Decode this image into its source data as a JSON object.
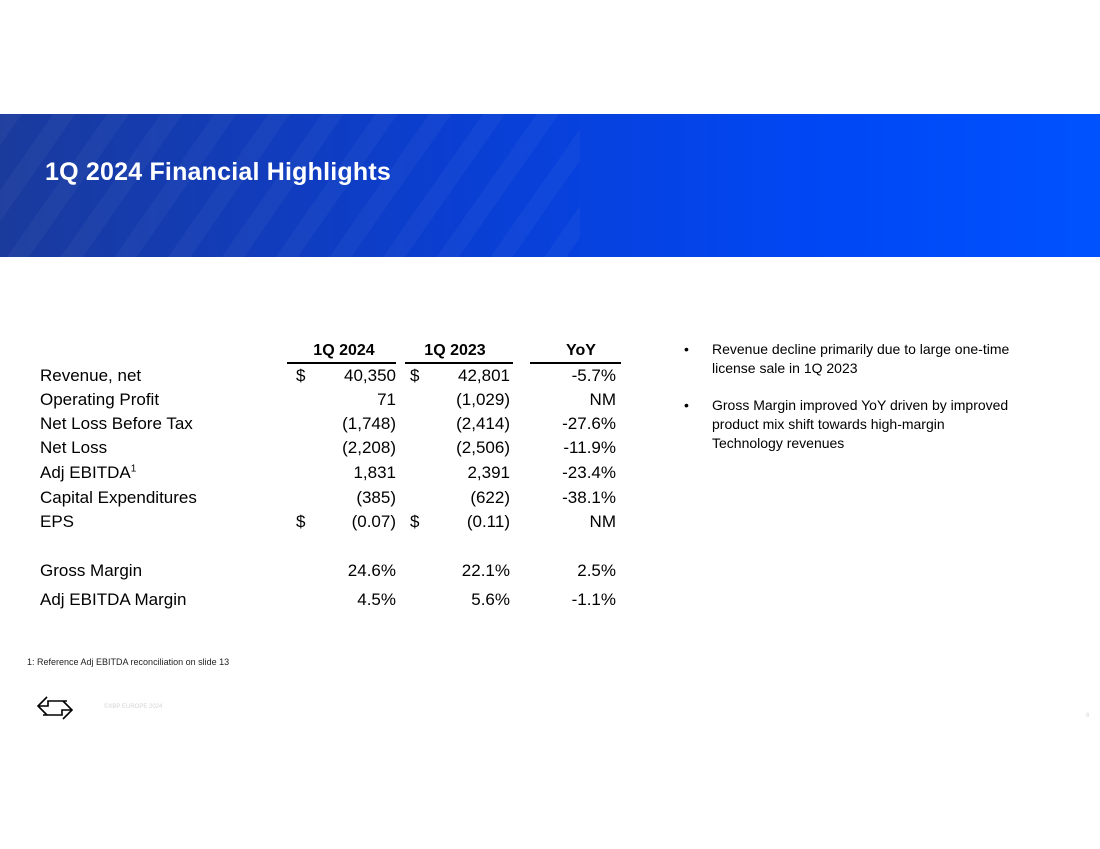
{
  "banner": {
    "title": "1Q 2024 Financial Highlights"
  },
  "table": {
    "columns": [
      "1Q 2024",
      "1Q 2023",
      "YoY"
    ],
    "rows": [
      {
        "label": "Revenue, net",
        "sup": "",
        "dollar_a": "$",
        "a": "40,350",
        "dollar_b": "$",
        "b": "42,801",
        "yoy": "-5.7%"
      },
      {
        "label": "Operating Profit",
        "sup": "",
        "dollar_a": "",
        "a": "71",
        "dollar_b": "",
        "b": "(1,029)",
        "yoy": "NM"
      },
      {
        "label": "Net Loss Before Tax",
        "sup": "",
        "dollar_a": "",
        "a": "(1,748)",
        "dollar_b": "",
        "b": "(2,414)",
        "yoy": "-27.6%"
      },
      {
        "label": "Net Loss",
        "sup": "",
        "dollar_a": "",
        "a": "(2,208)",
        "dollar_b": "",
        "b": "(2,506)",
        "yoy": "-11.9%"
      },
      {
        "label": "Adj EBITDA",
        "sup": "1",
        "dollar_a": "",
        "a": "1,831",
        "dollar_b": "",
        "b": "2,391",
        "yoy": "-23.4%"
      },
      {
        "label": "Capital Expenditures",
        "sup": "",
        "dollar_a": "",
        "a": "(385)",
        "dollar_b": "",
        "b": "(622)",
        "yoy": "-38.1%"
      },
      {
        "label": "EPS",
        "sup": "",
        "dollar_a": "$",
        "a": "(0.07)",
        "dollar_b": "$",
        "b": "(0.11)",
        "yoy": "NM"
      },
      {
        "label": "Gross Margin",
        "sup": "",
        "dollar_a": "",
        "a": "24.6%",
        "dollar_b": "",
        "b": "22.1%",
        "yoy": "2.5%"
      },
      {
        "label": "Adj EBITDA Margin",
        "sup": "",
        "dollar_a": "",
        "a": "4.5%",
        "dollar_b": "",
        "b": "5.6%",
        "yoy": "-1.1%"
      }
    ]
  },
  "bullets": [
    "Revenue decline primarily due to large one-time license sale in 1Q 2023",
    "Gross Margin improved YoY driven by improved product mix shift towards high-margin Technology revenues"
  ],
  "bullet_glyph": "•",
  "footnote": "1: Reference Adj EBITDA reconciliation on slide 13",
  "footer": {
    "copyright": "©XBP EUROPE 2024",
    "slide_number": "6",
    "logo_icon": "arrows-exchange-icon"
  }
}
